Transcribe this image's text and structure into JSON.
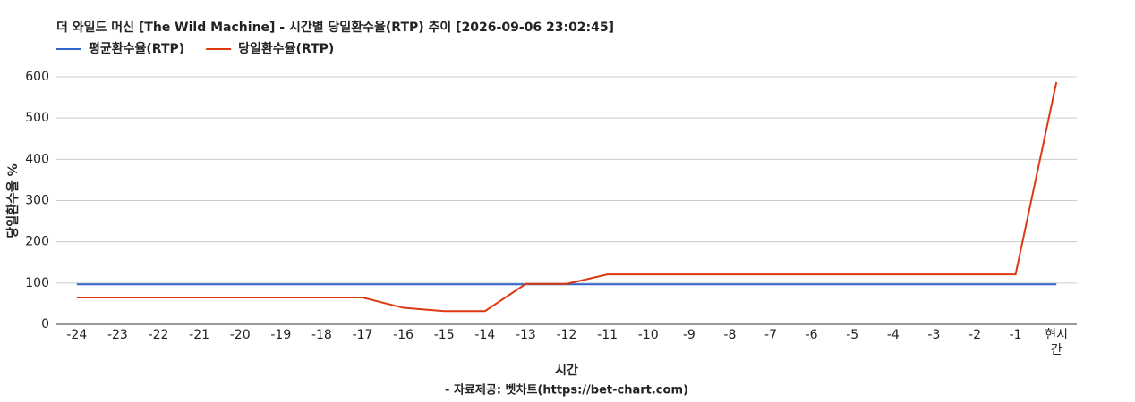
{
  "chart_data": {
    "type": "line",
    "title": "더 와일드 머신 [The Wild Machine] - 시간별 당일환수율(RTP) 추이 [2026-09-06 23:02:45]",
    "x_label": "시간",
    "y_label": "당일환수율 %",
    "source": "- 자료제공: 벳차트(https://bet-chart.com)",
    "categories": [
      "-24",
      "-23",
      "-22",
      "-21",
      "-20",
      "-19",
      "-18",
      "-17",
      "-16",
      "-15",
      "-14",
      "-13",
      "-12",
      "-11",
      "-10",
      "-9",
      "-8",
      "-7",
      "-6",
      "-5",
      "-4",
      "-3",
      "-2",
      "-1",
      "현시간"
    ],
    "series": [
      {
        "name": "평균환수율(RTP)",
        "color": "#3366cc",
        "values": [
          97,
          97,
          97,
          97,
          97,
          97,
          97,
          97,
          97,
          97,
          97,
          97,
          97,
          97,
          97,
          97,
          97,
          97,
          97,
          97,
          97,
          97,
          97,
          97,
          97
        ]
      },
      {
        "name": "당일환수율(RTP)",
        "color": "#dc3912",
        "values": [
          65,
          65,
          65,
          65,
          65,
          65,
          65,
          65,
          40,
          32,
          32,
          98,
          98,
          121,
          121,
          121,
          121,
          121,
          121,
          121,
          121,
          121,
          121,
          121,
          587
        ]
      }
    ],
    "ylim": [
      0,
      600
    ],
    "yticks": [
      0,
      100,
      200,
      300,
      400,
      500,
      600
    ],
    "grid": true
  }
}
